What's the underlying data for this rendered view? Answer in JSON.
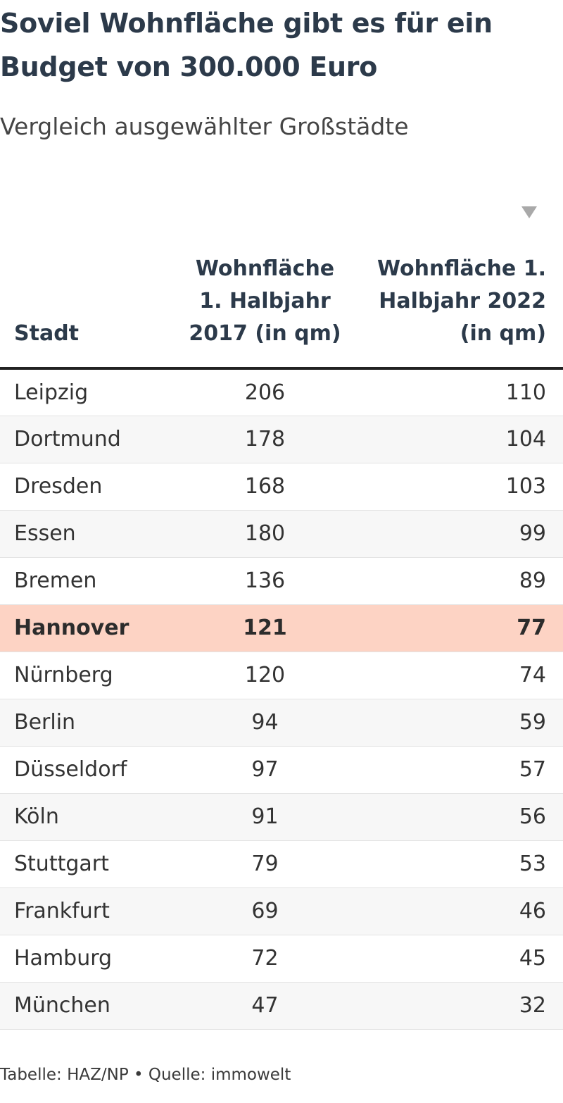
{
  "chart_data": {
    "type": "table",
    "title": "Soviel Wohnfläche gibt es für ein Budget von 300.000 Euro",
    "subtitle": "Vergleich ausgewählter Großstädte",
    "columns": [
      "Stadt",
      "Wohnfläche 1. Halbjahr 2017 (in qm)",
      "Wohnfläche 1. Halbjahr 2022 (in qm)"
    ],
    "sorted_by": "Wohnfläche 1. Halbjahr 2022 (in qm)",
    "sort_direction": "descending",
    "highlighted_row": "Hannover",
    "highlight_color": "#fdd3c4",
    "rows": [
      {
        "city": "Leipzig",
        "y2017": "206",
        "y2022": "110"
      },
      {
        "city": "Dortmund",
        "y2017": "178",
        "y2022": "104"
      },
      {
        "city": "Dresden",
        "y2017": "168",
        "y2022": "103"
      },
      {
        "city": "Essen",
        "y2017": "180",
        "y2022": "99"
      },
      {
        "city": "Bremen",
        "y2017": "136",
        "y2022": "89"
      },
      {
        "city": "Hannover",
        "y2017": "121",
        "y2022": "77"
      },
      {
        "city": "Nürnberg",
        "y2017": "120",
        "y2022": "74"
      },
      {
        "city": "Berlin",
        "y2017": "94",
        "y2022": "59"
      },
      {
        "city": "Düsseldorf",
        "y2017": "97",
        "y2022": "57"
      },
      {
        "city": "Köln",
        "y2017": "91",
        "y2022": "56"
      },
      {
        "city": "Stuttgart",
        "y2017": "79",
        "y2022": "53"
      },
      {
        "city": "Frankfurt",
        "y2017": "69",
        "y2022": "46"
      },
      {
        "city": "Hamburg",
        "y2017": "72",
        "y2022": "45"
      },
      {
        "city": "München",
        "y2017": "47",
        "y2022": "32"
      }
    ],
    "footer": "Tabelle: HAZ/NP • Quelle: immowelt"
  }
}
